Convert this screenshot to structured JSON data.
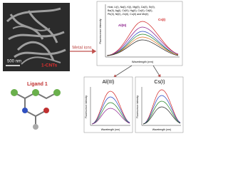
{
  "image": {
    "scale_bar": "500 nm",
    "label": "1-CNTs"
  },
  "ligand": {
    "label": "Ligand 1"
  },
  "arrow": {
    "label": "Metal ions"
  },
  "main_chart": {
    "legend": [
      "Host, Li(I), Na(I), K(I), Mg(II), Ca(II), Sr(II),",
      "Ba(II), Ag(I), Cr(III), Hg(II), Co(II), Cd(II),",
      "Pb(II), Ni(II), Zn(II), Cu(II) and Mn(II)"
    ],
    "y_label": "Fluorescence Intensity",
    "x_label": "Wavelength (nm)",
    "peak_labels": [
      "Al(III)",
      "Cs(I)"
    ]
  },
  "insets": [
    {
      "title": "Al(III)",
      "y_label": "Fluorescence intensity",
      "x_label": "Wavelength (nm)"
    },
    {
      "title": "Cs(I)",
      "y_label": "Fluorescence intensity",
      "x_label": "Wavelength (nm)"
    }
  ]
}
